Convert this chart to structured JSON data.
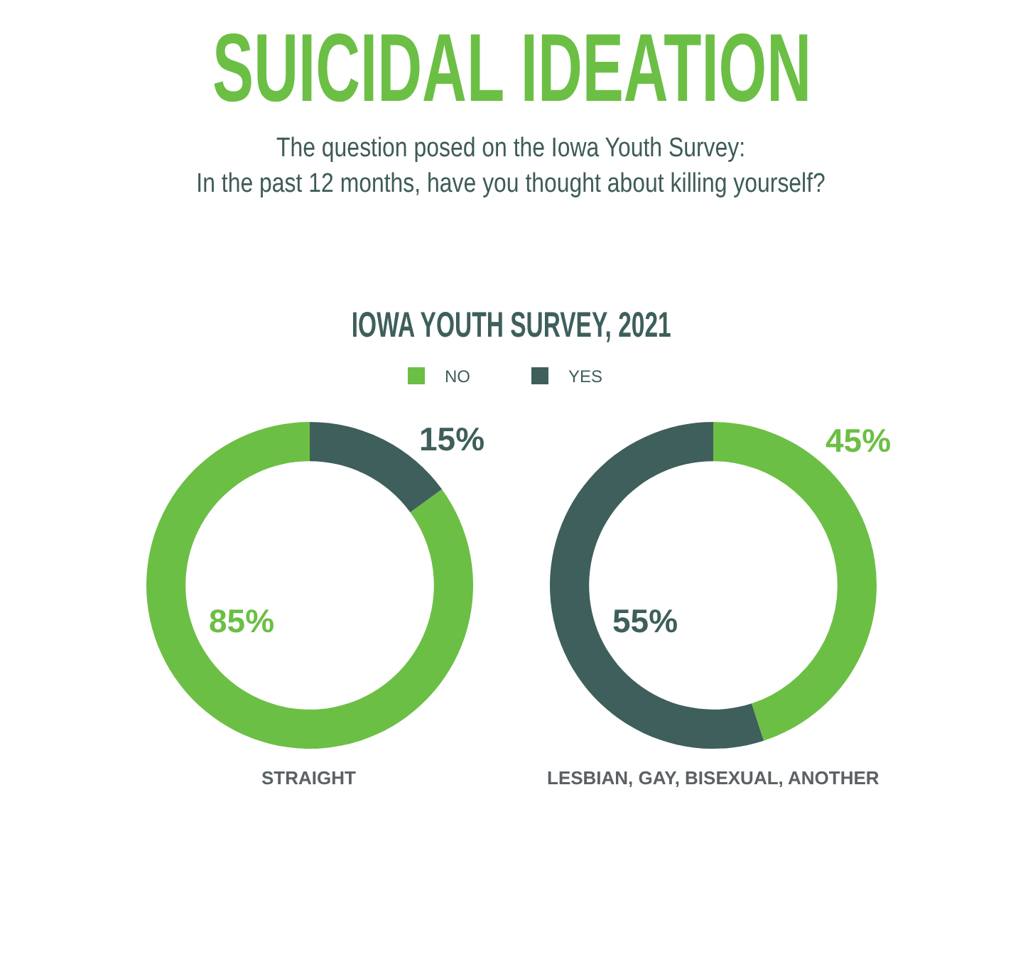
{
  "chart_data": {
    "type": "donut",
    "title": "SUICIDAL IDEATION",
    "subtitle": "The question posed on the Iowa Youth Survey:\nIn the past 12 months, have you thought about killing yourself?",
    "annotations": [
      "IOWA YOUTH SURVEY, 2021"
    ],
    "categories": [
      "NO",
      "YES"
    ],
    "colors": [
      "#6cbf45",
      "#3e5f5b"
    ],
    "legend": "top",
    "series": [
      {
        "name": "STRAIGHT",
        "values": [
          85,
          15
        ],
        "value_labels": [
          "85%",
          "15%"
        ]
      },
      {
        "name": "LESBIAN, GAY, BISEXUAL, ANOTHER",
        "values": [
          45,
          55
        ],
        "value_labels": [
          "45%",
          "55%"
        ]
      }
    ]
  }
}
